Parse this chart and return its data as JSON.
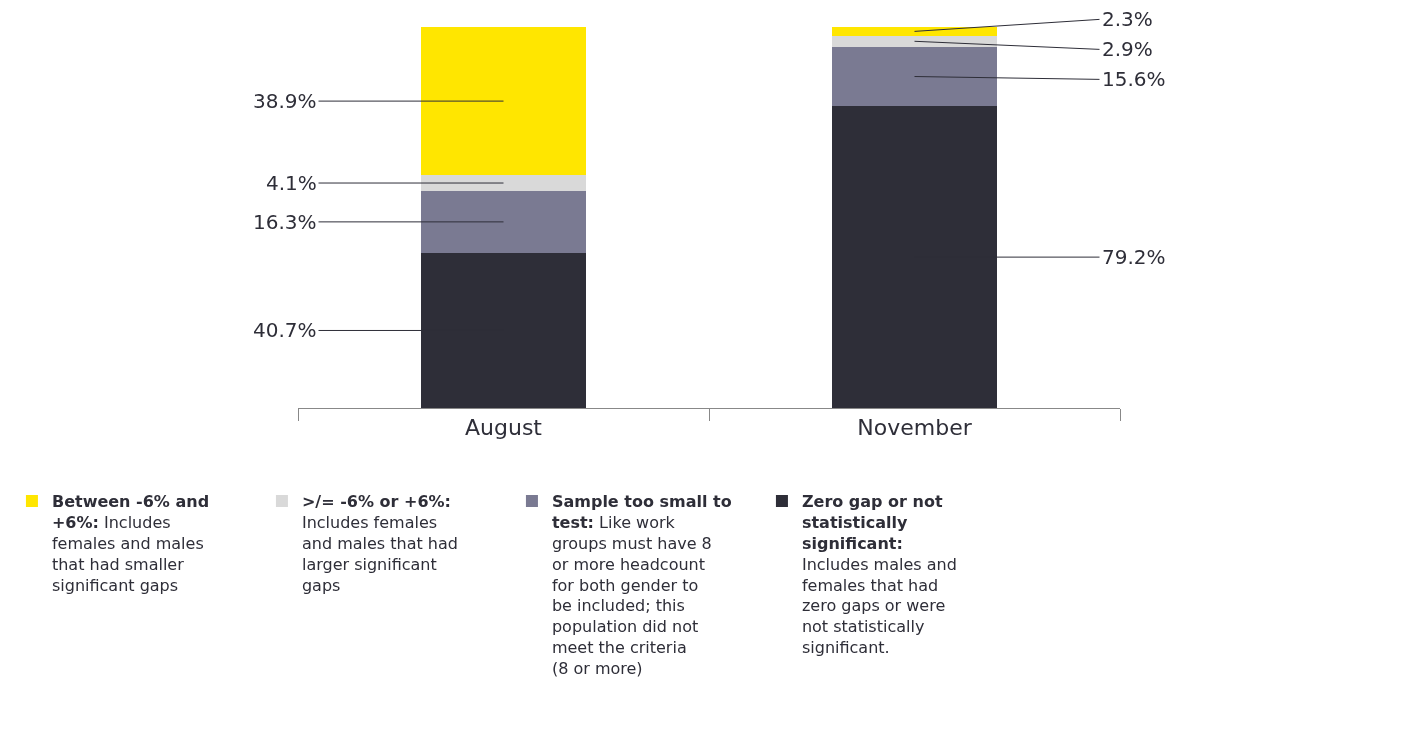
{
  "chart_data": {
    "type": "bar",
    "stacked": true,
    "categories": [
      "August",
      "November"
    ],
    "series": [
      {
        "name": "Zero gap or not statistically significant:",
        "color": "#2e2e38",
        "values": [
          40.7,
          79.2
        ],
        "value_labels": [
          "40.7%",
          "79.2%"
        ]
      },
      {
        "name": "Sample too small to test:",
        "color": "#7a7a92",
        "values": [
          16.3,
          15.6
        ],
        "value_labels": [
          "16.3%",
          "15.6%"
        ]
      },
      {
        "name": ">/= -6% or +6%:",
        "color": "#d9d9d9",
        "values": [
          4.1,
          2.9
        ],
        "value_labels": [
          "4.1%",
          "2.9%"
        ]
      },
      {
        "name": "Between -6% and +6%:",
        "color": "#ffe600",
        "values": [
          38.9,
          2.3
        ],
        "value_labels": [
          "38.9%",
          "2.3%"
        ]
      }
    ],
    "annotations": [
      "Includes males and females that had zero gaps or were not statistically significant.",
      "Like work groups must have 8 or more headcount for both gender to be included; this population did not meet the criteria (8 or more)",
      "Includes females and males that had larger significant gaps",
      "Includes females and males that had smaller significant gaps"
    ],
    "legend": "bottom"
  }
}
